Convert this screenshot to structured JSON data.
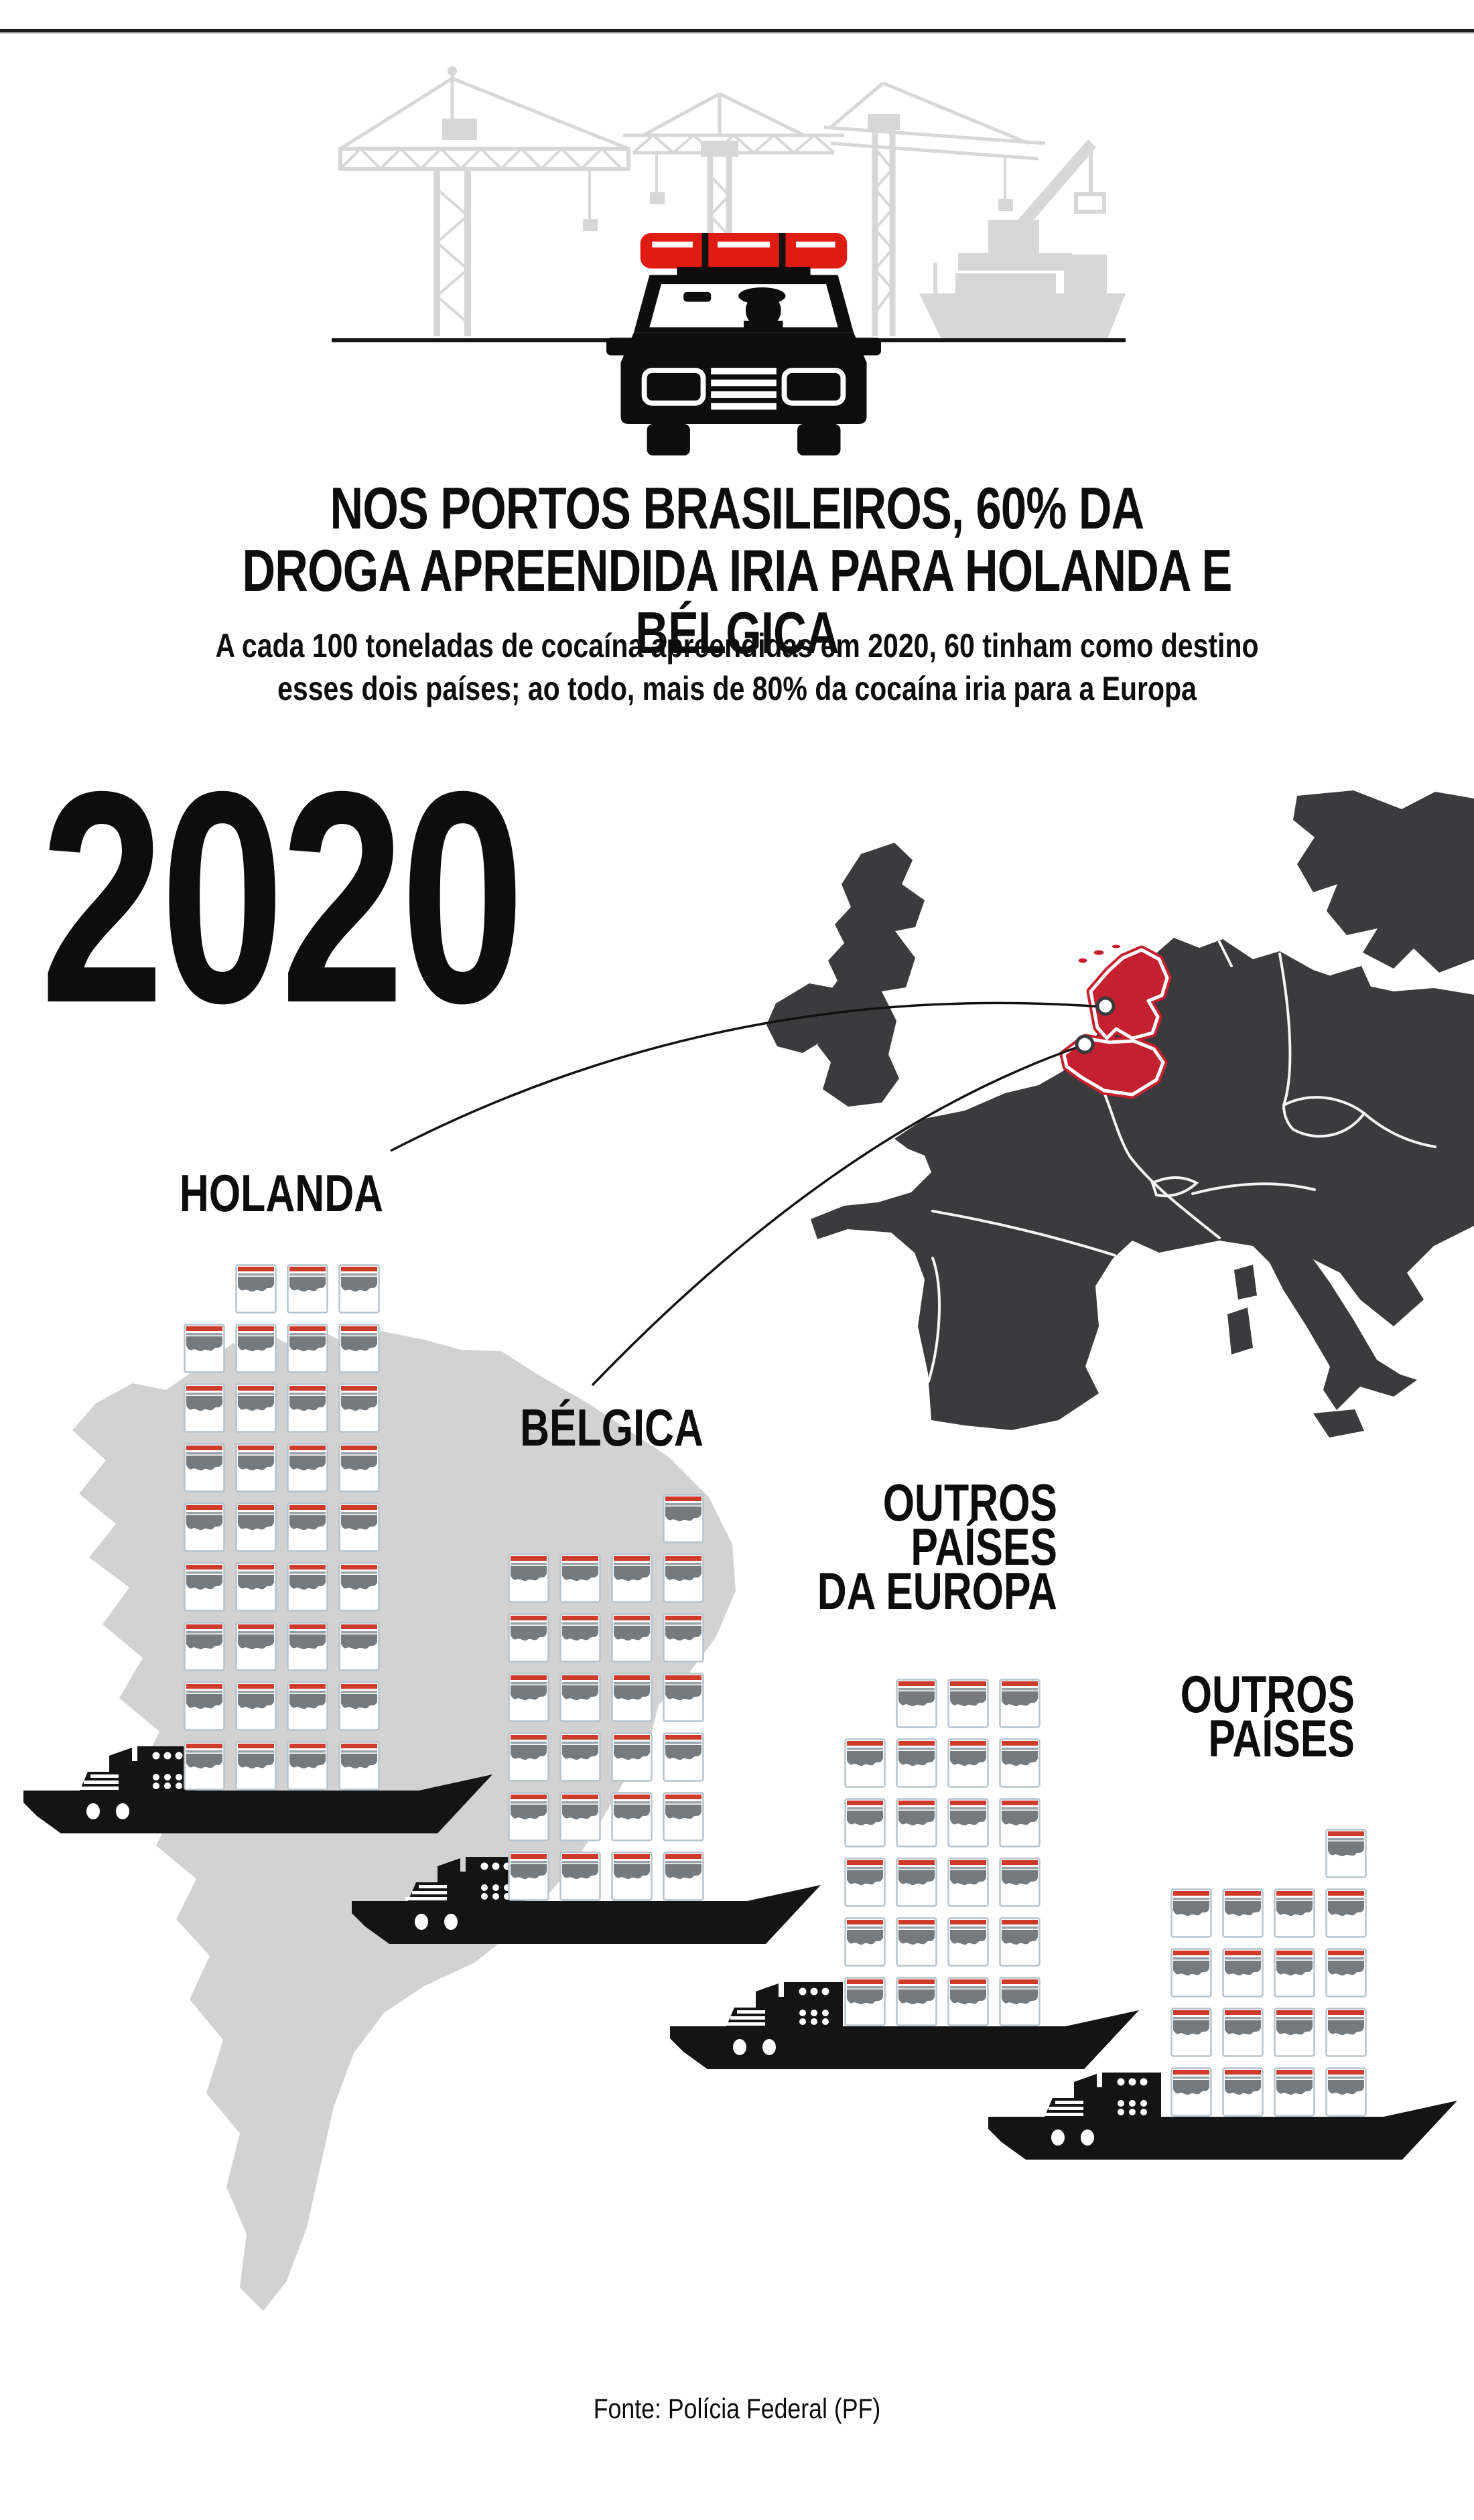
{
  "page": {
    "title_line1": "NOS PORTOS BRASILEIROS, 60% DA",
    "title_line2": "DROGA APREENDIDA IRIA PARA HOLANDA E BÉLGICA",
    "subtitle_line1": "A cada 100 toneladas de cocaína apreendidas em 2020, 60 tinham como destino",
    "subtitle_line2": "esses dois países; ao todo, mais de 80% da cocaína iria para a Europa",
    "year_label": "2020",
    "source": "Fonte: Polícia Federal (PF)"
  },
  "chart_data": {
    "type": "pictogram",
    "title": "NOS PORTOS BRASILEIROS, 60% DA DROGA APREENDIDA IRIA PARA HOLANDA E BÉLGICA",
    "categories": [
      "HOLANDA",
      "BÉLGICA",
      "OUTROS PAÍSES DA EUROPA",
      "OUTROS PAÍSES"
    ],
    "values": [
      35,
      25,
      23,
      17
    ],
    "total": 100,
    "year": "2020",
    "icon": "cocaine-bag",
    "columns_per_stack": 4
  },
  "charts": [
    {
      "id": "holanda",
      "label_lines": [
        "HOLANDA"
      ],
      "value": 35
    },
    {
      "id": "belgica",
      "label_lines": [
        "BÉLGICA"
      ],
      "value": 25
    },
    {
      "id": "europa",
      "label_lines": [
        "OUTROS",
        "PAÍSES",
        "DA EUROPA"
      ],
      "value": 23
    },
    {
      "id": "outros",
      "label_lines": [
        "OUTROS",
        "PAÍSES"
      ],
      "value": 17
    }
  ],
  "map": {
    "highlighted_countries": [
      "Holanda",
      "Bélgica"
    ]
  },
  "colors": {
    "accent_red": "#e01b12",
    "map_highlight_red": "#c5202f",
    "bag_strip_red": "#cf3b2a",
    "map_dark": "#3b3a3c",
    "silhouette_gray": "#d2d2d2",
    "black": "#141414"
  }
}
